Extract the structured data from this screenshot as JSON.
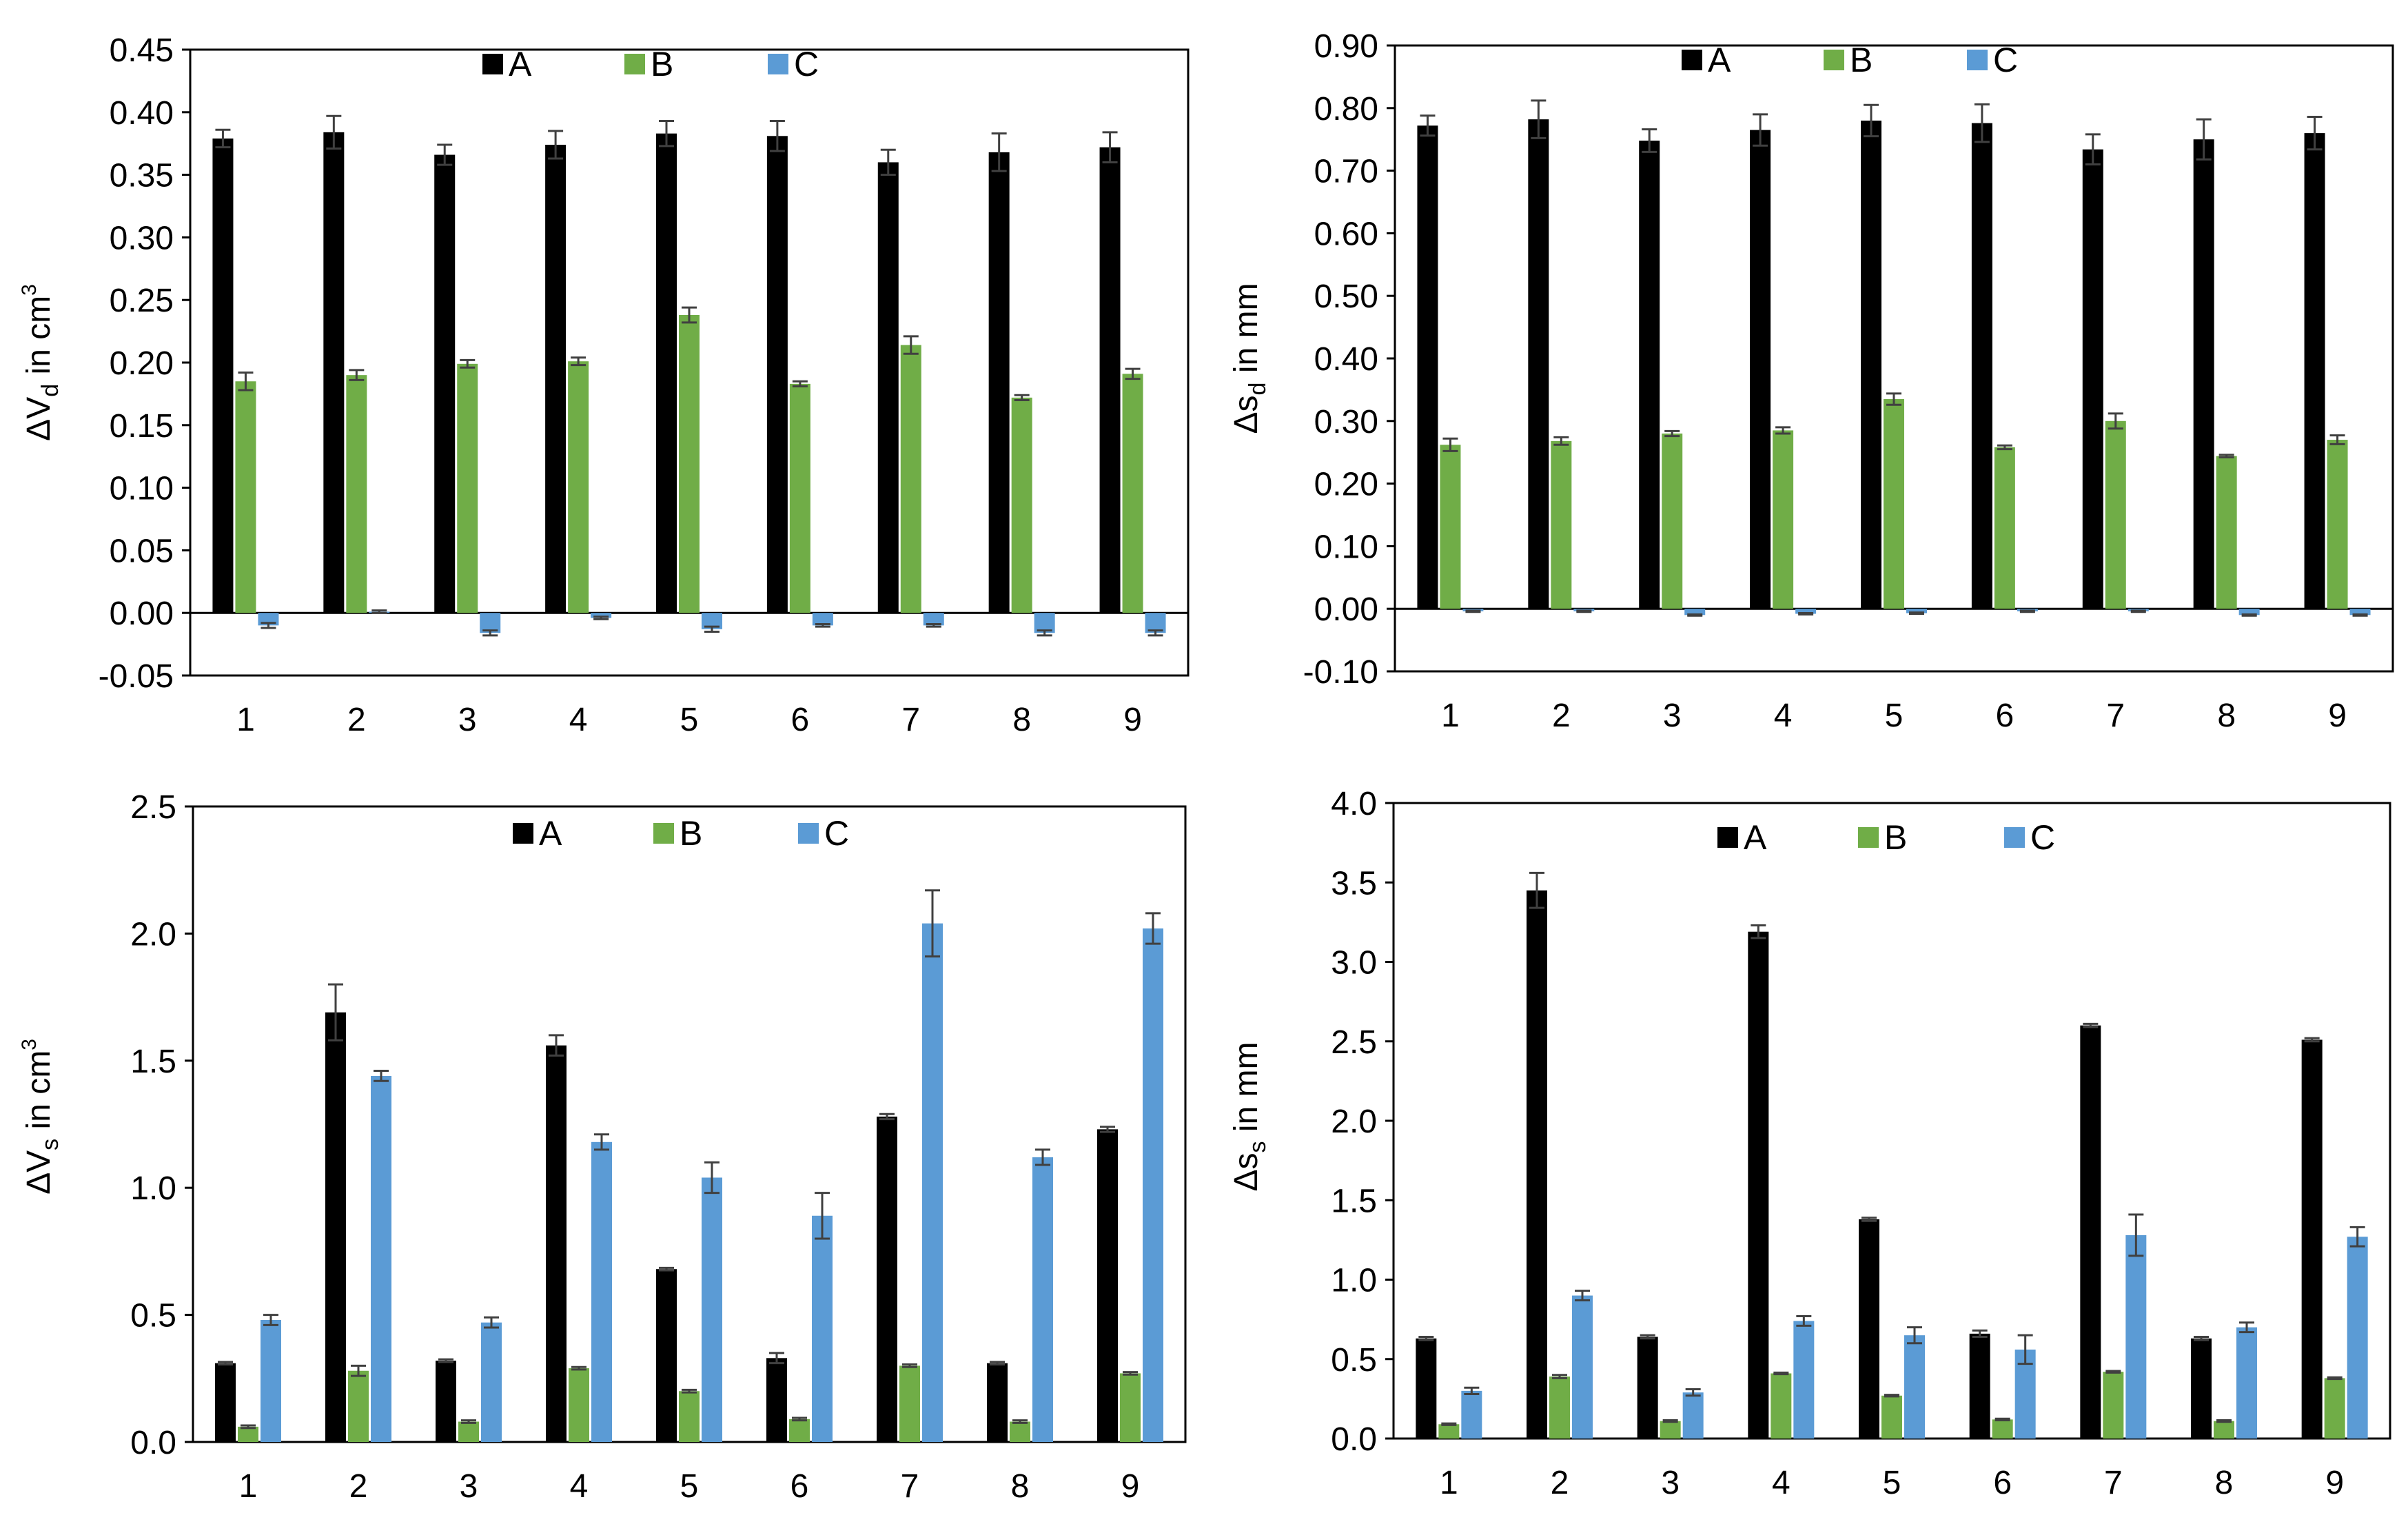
{
  "colors": {
    "A": "#000000",
    "B": "#70AD47",
    "C": "#5B9BD5",
    "error": "#404040",
    "axis": "#000000"
  },
  "chart_data": [
    {
      "type": "bar",
      "ylabel": {
        "pre": "ΔV",
        "sub": "d",
        "mid": " in cm",
        "sup": "3"
      },
      "categories": [
        "1",
        "2",
        "3",
        "4",
        "5",
        "6",
        "7",
        "8",
        "9"
      ],
      "ylim": [
        -0.05,
        0.45
      ],
      "yticks": [
        -0.05,
        0.0,
        0.05,
        0.1,
        0.15,
        0.2,
        0.25,
        0.3,
        0.35,
        0.4,
        0.45
      ],
      "ytick_labels": [
        "-0.05",
        "0.00",
        "0.05",
        "0.10",
        "0.15",
        "0.20",
        "0.25",
        "0.30",
        "0.35",
        "0.40",
        "0.45"
      ],
      "series": [
        {
          "name": "A",
          "values": [
            0.379,
            0.384,
            0.366,
            0.374,
            0.383,
            0.381,
            0.36,
            0.368,
            0.372
          ],
          "errors": [
            0.007,
            0.013,
            0.008,
            0.011,
            0.01,
            0.012,
            0.01,
            0.015,
            0.012
          ]
        },
        {
          "name": "B",
          "values": [
            0.185,
            0.19,
            0.199,
            0.201,
            0.238,
            0.183,
            0.214,
            0.172,
            0.191
          ],
          "errors": [
            0.007,
            0.004,
            0.003,
            0.003,
            0.006,
            0.002,
            0.007,
            0.002,
            0.004
          ]
        },
        {
          "name": "C",
          "values": [
            -0.01,
            0.001,
            -0.016,
            -0.004,
            -0.013,
            -0.01,
            -0.01,
            -0.016,
            -0.016
          ],
          "errors": [
            0.002,
            0.001,
            0.002,
            0.001,
            0.002,
            0.001,
            0.001,
            0.002,
            0.002
          ]
        }
      ]
    },
    {
      "type": "bar",
      "ylabel": {
        "pre": "Δs",
        "sub": "d",
        "mid": " in mm",
        "sup": ""
      },
      "categories": [
        "1",
        "2",
        "3",
        "4",
        "5",
        "6",
        "7",
        "8",
        "9"
      ],
      "ylim": [
        -0.1,
        0.9
      ],
      "yticks": [
        -0.1,
        0.0,
        0.1,
        0.2,
        0.3,
        0.4,
        0.5,
        0.6,
        0.7,
        0.8,
        0.9
      ],
      "ytick_labels": [
        "-0.10",
        "0.00",
        "0.10",
        "0.20",
        "0.30",
        "0.40",
        "0.50",
        "0.60",
        "0.70",
        "0.80",
        "0.90"
      ],
      "series": [
        {
          "name": "A",
          "values": [
            0.772,
            0.782,
            0.748,
            0.765,
            0.78,
            0.776,
            0.734,
            0.75,
            0.76
          ],
          "errors": [
            0.016,
            0.03,
            0.018,
            0.025,
            0.025,
            0.03,
            0.024,
            0.032,
            0.026
          ]
        },
        {
          "name": "B",
          "values": [
            0.262,
            0.268,
            0.28,
            0.285,
            0.335,
            0.258,
            0.3,
            0.244,
            0.27
          ],
          "errors": [
            0.01,
            0.006,
            0.004,
            0.005,
            0.009,
            0.003,
            0.012,
            0.002,
            0.007
          ]
        },
        {
          "name": "C",
          "values": [
            -0.004,
            -0.004,
            -0.01,
            -0.008,
            -0.007,
            -0.004,
            -0.004,
            -0.01,
            -0.01
          ],
          "errors": [
            0.001,
            0.001,
            0.001,
            0.001,
            0.001,
            0.001,
            0.001,
            0.001,
            0.001
          ]
        }
      ]
    },
    {
      "type": "bar",
      "ylabel": {
        "pre": "ΔV",
        "sub": "s",
        "mid": " in cm",
        "sup": "3"
      },
      "categories": [
        "1",
        "2",
        "3",
        "4",
        "5",
        "6",
        "7",
        "8",
        "9"
      ],
      "ylim": [
        0.0,
        2.5
      ],
      "yticks": [
        0.0,
        0.5,
        1.0,
        1.5,
        2.0,
        2.5
      ],
      "ytick_labels": [
        "0.0",
        "0.5",
        "1.0",
        "1.5",
        "2.0",
        "2.5"
      ],
      "series": [
        {
          "name": "A",
          "values": [
            0.31,
            1.69,
            0.32,
            1.56,
            0.68,
            0.33,
            1.28,
            0.31,
            1.23
          ],
          "errors": [
            0.005,
            0.11,
            0.005,
            0.04,
            0.005,
            0.02,
            0.01,
            0.005,
            0.01
          ]
        },
        {
          "name": "B",
          "values": [
            0.06,
            0.28,
            0.08,
            0.29,
            0.2,
            0.09,
            0.3,
            0.08,
            0.27
          ],
          "errors": [
            0.005,
            0.02,
            0.005,
            0.005,
            0.005,
            0.005,
            0.005,
            0.005,
            0.005
          ]
        },
        {
          "name": "C",
          "values": [
            0.48,
            1.44,
            0.47,
            1.18,
            1.04,
            0.89,
            2.04,
            1.12,
            2.02
          ],
          "errors": [
            0.02,
            0.02,
            0.02,
            0.03,
            0.06,
            0.09,
            0.13,
            0.03,
            0.06
          ]
        }
      ]
    },
    {
      "type": "bar",
      "ylabel": {
        "pre": "Δs",
        "sub": "s",
        "mid": " in mm",
        "sup": ""
      },
      "categories": [
        "1",
        "2",
        "3",
        "4",
        "5",
        "6",
        "7",
        "8",
        "9"
      ],
      "ylim": [
        0.0,
        4.0
      ],
      "yticks": [
        0.0,
        0.5,
        1.0,
        1.5,
        2.0,
        2.5,
        3.0,
        3.5,
        4.0
      ],
      "ytick_labels": [
        "0.0",
        "0.5",
        "1.0",
        "1.5",
        "2.0",
        "2.5",
        "3.0",
        "3.5",
        "4.0"
      ],
      "series": [
        {
          "name": "A",
          "values": [
            0.63,
            3.45,
            0.64,
            3.19,
            1.38,
            0.66,
            2.6,
            0.63,
            2.51
          ],
          "errors": [
            0.01,
            0.11,
            0.01,
            0.04,
            0.01,
            0.02,
            0.01,
            0.01,
            0.01
          ]
        },
        {
          "name": "B",
          "values": [
            0.09,
            0.39,
            0.11,
            0.41,
            0.27,
            0.12,
            0.42,
            0.11,
            0.38
          ],
          "errors": [
            0.005,
            0.01,
            0.005,
            0.005,
            0.005,
            0.005,
            0.005,
            0.005,
            0.005
          ]
        },
        {
          "name": "C",
          "values": [
            0.3,
            0.9,
            0.29,
            0.74,
            0.65,
            0.56,
            1.28,
            0.7,
            1.27
          ],
          "errors": [
            0.02,
            0.03,
            0.02,
            0.03,
            0.05,
            0.09,
            0.13,
            0.03,
            0.06
          ]
        }
      ]
    }
  ]
}
